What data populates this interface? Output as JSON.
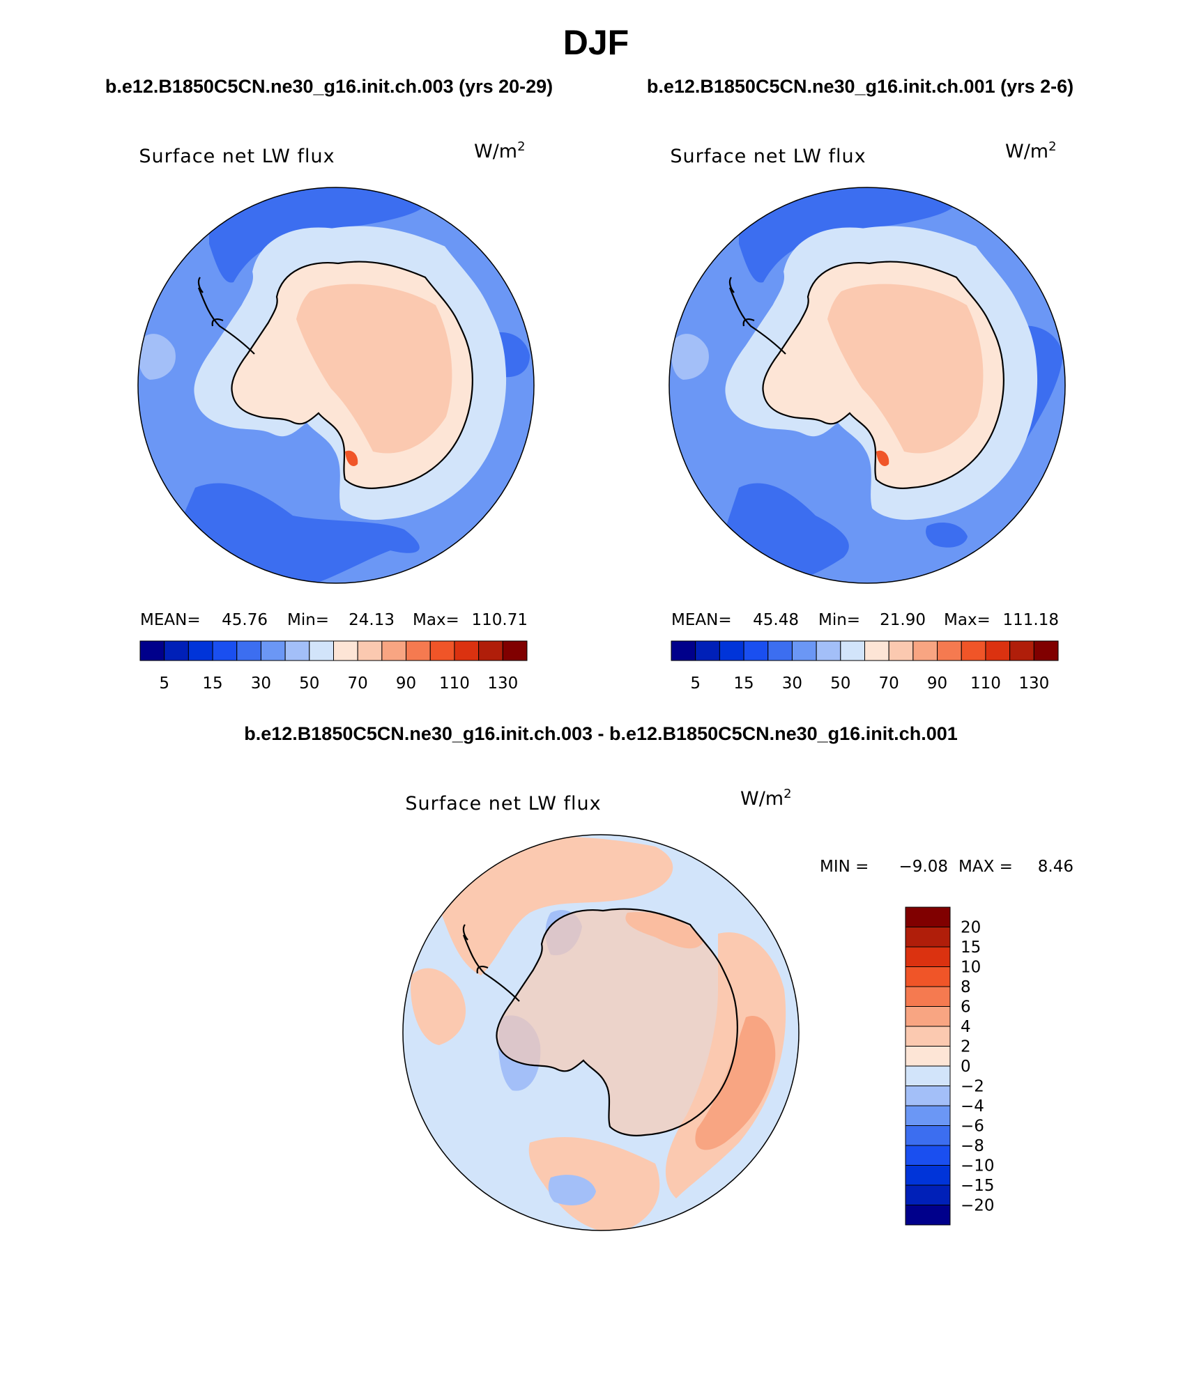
{
  "title": "DJF",
  "panels": [
    {
      "case_title": "b.e12.B1850C5CN.ne30_g16.init.ch.003 (yrs 20-29)",
      "variable": "Surface net LW flux",
      "units_base": "W/m",
      "units_exp": "2",
      "stats": {
        "mean_label": "MEAN=",
        "mean": "45.76",
        "min_label": "Min=",
        "min": "24.13",
        "max_label": "Max=",
        "max": "110.71"
      }
    },
    {
      "case_title": "b.e12.B1850C5CN.ne30_g16.init.ch.001 (yrs 2-6)",
      "variable": "Surface net LW flux",
      "units_base": "W/m",
      "units_exp": "2",
      "stats": {
        "mean_label": "MEAN=",
        "mean": "45.48",
        "min_label": "Min=",
        "min": "21.90",
        "max_label": "Max=",
        "max": "111.18"
      }
    }
  ],
  "abs_colorbar": {
    "colors": [
      "#00008b",
      "#0020b8",
      "#0034d9",
      "#1a4ff0",
      "#3c6ef0",
      "#6b97f5",
      "#a3bff8",
      "#d2e4fa",
      "#fde5d6",
      "#fbc9b0",
      "#f8a582",
      "#f57a50",
      "#f05528",
      "#db3210",
      "#b01e0a",
      "#800000"
    ],
    "labels": [
      "5",
      "15",
      "30",
      "50",
      "70",
      "90",
      "110",
      "130"
    ]
  },
  "diff_panel": {
    "case_title": "b.e12.B1850C5CN.ne30_g16.init.ch.003 - b.e12.B1850C5CN.ne30_g16.init.ch.001",
    "variable": "Surface net LW flux",
    "units_base": "W/m",
    "units_exp": "2",
    "min_label": "MIN =",
    "min": "−9.08",
    "max_label": "MAX =",
    "max": "8.46"
  },
  "diff_colorbar": {
    "colors": [
      "#800000",
      "#b01e0a",
      "#db3210",
      "#f05528",
      "#f57a50",
      "#f8a582",
      "#fbc9b0",
      "#fde5d6",
      "#d2e4fa",
      "#a3bff8",
      "#6b97f5",
      "#3c6ef0",
      "#1a4ff0",
      "#0034d9",
      "#0020b8",
      "#00008b"
    ],
    "labels": [
      "20",
      "15",
      "10",
      "8",
      "6",
      "4",
      "2",
      "0",
      "−2",
      "−4",
      "−6",
      "−8",
      "−10",
      "−15",
      "−20"
    ]
  },
  "map_colors": {
    "ocean_a": "#6b97f5",
    "ocean_b": "#3c6ef0",
    "ocean_light": "#a3bff8",
    "shelf": "#d2e4fa",
    "ice": "#fde5d6",
    "ice_b": "#fbc9b0",
    "hot": "#f05528",
    "diff_pos": "#fbc9b0",
    "diff_pos_b": "#f8a582",
    "diff_neg": "#d2e4fa",
    "diff_neg_b": "#a3bff8",
    "coast": "#000000"
  }
}
